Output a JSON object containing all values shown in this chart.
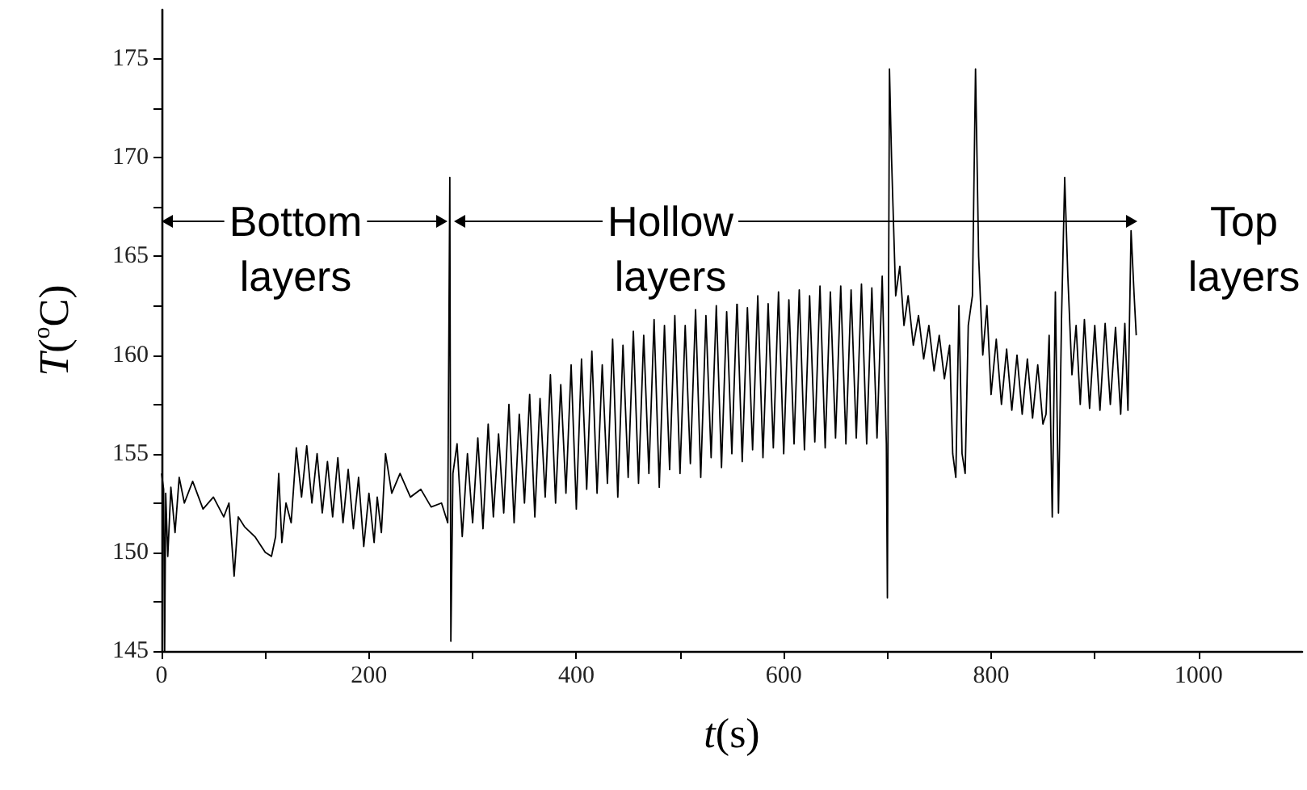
{
  "chart_data": {
    "type": "line",
    "xlabel": "t(s)",
    "ylabel": "T($^{o}$C)",
    "color": "#000000",
    "marker": "none",
    "grid": false,
    "xlim": [
      0,
      1100
    ],
    "xticks": [
      0,
      {
        "value": 100,
        "label": null
      },
      200,
      {
        "value": 300,
        "label": null
      },
      400,
      {
        "value": 500,
        "label": null
      },
      600,
      {
        "value": 700,
        "label": null
      },
      800,
      {
        "value": 900,
        "label": null
      },
      1000
    ],
    "ylim": [
      145,
      177.5
    ],
    "yticks": [
      145,
      {
        "value": 147.5,
        "label": null
      },
      150,
      {
        "value": 152.5,
        "label": null
      },
      155,
      {
        "value": 157.5,
        "label": null
      },
      160,
      {
        "value": 162.5,
        "label": null
      },
      165,
      {
        "value": 167.5,
        "label": null
      },
      170,
      {
        "value": 172.5,
        "label": null
      },
      175
    ],
    "annotations": [
      "Bottom\nlayers",
      "Hollow\nlayers",
      "Top\nlayers"
    ],
    "x": [
      0,
      2,
      3,
      4,
      6,
      9,
      13,
      17,
      22,
      30,
      40,
      50,
      60,
      65,
      70,
      74,
      80,
      90,
      100,
      106,
      110,
      113,
      116,
      120,
      125,
      130,
      135,
      140,
      145,
      150,
      155,
      160,
      165,
      170,
      175,
      180,
      185,
      190,
      195,
      200,
      205,
      208,
      212,
      216,
      222,
      230,
      240,
      250,
      260,
      270,
      276,
      278,
      279,
      281,
      285,
      290,
      295,
      300,
      305,
      310,
      315,
      320,
      325,
      330,
      335,
      340,
      345,
      350,
      355,
      360,
      365,
      370,
      375,
      380,
      385,
      390,
      395,
      400,
      405,
      410,
      415,
      420,
      425,
      430,
      435,
      440,
      445,
      450,
      455,
      460,
      465,
      470,
      475,
      480,
      485,
      490,
      495,
      500,
      505,
      510,
      515,
      520,
      525,
      530,
      535,
      540,
      545,
      550,
      555,
      560,
      565,
      570,
      575,
      580,
      585,
      590,
      595,
      600,
      605,
      610,
      615,
      620,
      625,
      630,
      635,
      640,
      645,
      650,
      655,
      660,
      665,
      670,
      675,
      680,
      685,
      690,
      695,
      699,
      700,
      702,
      704,
      708,
      712,
      716,
      720,
      725,
      730,
      735,
      740,
      745,
      750,
      755,
      760,
      763,
      766,
      769,
      772,
      775,
      778,
      782,
      785,
      788,
      792,
      796,
      800,
      805,
      810,
      815,
      820,
      825,
      830,
      835,
      840,
      845,
      850,
      853,
      856,
      859,
      862,
      865,
      868,
      871,
      874,
      878,
      882,
      886,
      890,
      895,
      900,
      905,
      910,
      915,
      920,
      925,
      929,
      932,
      935,
      938,
      940
    ],
    "values": [
      154,
      153.2,
      145,
      153,
      149.8,
      153.3,
      151,
      153.8,
      152.5,
      153.6,
      152.2,
      152.8,
      151.8,
      152.5,
      148.8,
      151.8,
      151.3,
      150.8,
      150,
      149.8,
      150.8,
      154,
      150.5,
      152.5,
      151.5,
      155.3,
      152.8,
      155.4,
      152.5,
      155,
      152,
      154.6,
      151.8,
      154.8,
      151.5,
      154.2,
      151.2,
      153.8,
      150.3,
      153,
      150.5,
      152.8,
      151,
      155,
      153,
      154,
      152.8,
      153.2,
      152.3,
      152.5,
      151.5,
      169,
      145.5,
      154,
      155.5,
      150.8,
      155,
      151.5,
      155.8,
      151.2,
      156.5,
      151.8,
      156,
      152,
      157.5,
      151.5,
      157,
      152.5,
      158,
      151.8,
      157.8,
      152.8,
      159,
      152.5,
      158.5,
      153,
      159.5,
      152.2,
      159.8,
      153.2,
      160.2,
      153,
      159.5,
      153.5,
      160.8,
      152.8,
      160.5,
      153.8,
      161.2,
      153.5,
      161,
      154,
      161.8,
      153.3,
      161.5,
      154.2,
      162,
      154,
      161.5,
      154.5,
      162.3,
      153.8,
      162,
      154.8,
      162.5,
      154.3,
      162.2,
      155,
      162.8,
      154.6,
      162.4,
      155.2,
      163,
      154.8,
      162.6,
      155.3,
      163.2,
      155,
      162.8,
      155.5,
      163.3,
      155.2,
      163,
      155.6,
      163.5,
      155.3,
      163.2,
      155.8,
      163.5,
      155.5,
      163.3,
      155.8,
      163.6,
      155.5,
      163.4,
      155.8,
      164,
      155.5,
      147.7,
      174.5,
      170,
      163,
      164.5,
      161.5,
      163,
      160.5,
      162,
      159.8,
      161.5,
      159.2,
      161,
      158.8,
      160.5,
      155,
      153.8,
      162.5,
      155,
      154,
      161.5,
      163,
      174.5,
      165,
      160,
      162.5,
      158,
      160.8,
      157.5,
      160.3,
      157.2,
      160,
      157,
      159.8,
      156.8,
      159.5,
      156.5,
      157,
      161,
      151.8,
      163.2,
      152,
      162,
      169,
      164,
      159,
      161.5,
      157.5,
      161.8,
      157.3,
      161.5,
      157.2,
      161.6,
      157.5,
      161.4,
      157,
      161.6,
      157.2,
      166.3,
      163,
      161
    ]
  }
}
